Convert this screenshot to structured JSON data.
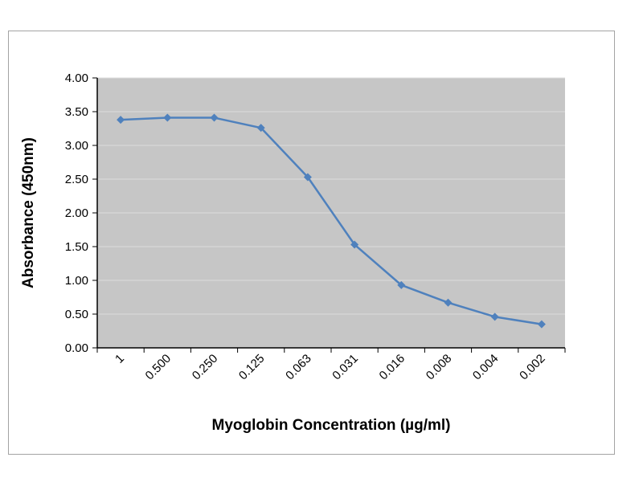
{
  "figure": {
    "background_color": "#ffffff",
    "border_color": "#a3a3a3"
  },
  "chart_data": {
    "type": "line",
    "categories": [
      "1",
      "0.500",
      "0.250",
      "0.125",
      "0.063",
      "0.031",
      "0.016",
      "0.008",
      "0.004",
      "0.002"
    ],
    "values": [
      3.38,
      3.41,
      3.41,
      3.26,
      2.53,
      1.53,
      0.93,
      0.67,
      0.46,
      0.35
    ],
    "xlabel": "Myoglobin Concentration (µg/ml)",
    "ylabel": "Absorbance (450nm)",
    "ylim": [
      0,
      4
    ],
    "ytick_step": 0.5,
    "ytick_decimals": 2,
    "grid": "horizontal",
    "legend": "none",
    "marker": "diamond",
    "colors": {
      "line": "#4f81bd",
      "marker": "#4f81bd",
      "plot_background": "#c6c6c6",
      "gridline": "#dcdcdc",
      "axis": "#000000",
      "tick_label": "#000000"
    }
  }
}
